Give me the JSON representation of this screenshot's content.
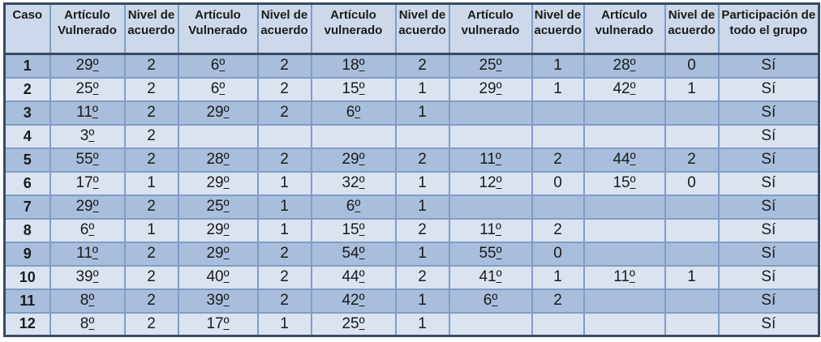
{
  "colors": {
    "outer_border": "#3a4a63",
    "grid_border": "#7f9dc8",
    "header_fill": "#cdd9ea",
    "row_dark_fill": "#a8bedc",
    "row_light_fill": "#dbe3f1",
    "text": "#1b1b1b"
  },
  "table": {
    "columns": [
      "Caso",
      "Artículo Vulnerado",
      "Nivel de acuerdo",
      "Artículo Vulnerado",
      "Nivel de acuerdo",
      "Artículo vulnerado",
      "Nivel de acuerdo",
      "Artículo vulnerado",
      "Nivel de acuerdo",
      "Artículo vulnerado",
      "Nivel de acuerdo",
      "Participación de todo el grupo"
    ],
    "rows": [
      [
        "1",
        "29º",
        "2",
        "6º",
        "2",
        "18º",
        "2",
        "25º",
        "1",
        "28º",
        "0",
        "Sí"
      ],
      [
        "2",
        "25º",
        "2",
        "6º",
        "2",
        "15º",
        "1",
        "29º",
        "1",
        "42º",
        "1",
        "Sí"
      ],
      [
        "3",
        "11º",
        "2",
        "29º",
        "2",
        "6º",
        "1",
        "",
        "",
        "",
        "",
        "Sí"
      ],
      [
        "4",
        "3º",
        "2",
        "",
        "",
        "",
        "",
        "",
        "",
        "",
        "",
        "Sí"
      ],
      [
        "5",
        "55º",
        "2",
        "28º",
        "2",
        "29º",
        "2",
        "11º",
        "2",
        "44º",
        "2",
        "Sí"
      ],
      [
        "6",
        "17º",
        "1",
        "29º",
        "1",
        "32º",
        "1",
        "12º",
        "0",
        "15º",
        "0",
        "Sí"
      ],
      [
        "7",
        "29º",
        "2",
        "25º",
        "1",
        "6º",
        "1",
        "",
        "",
        "",
        "",
        "Sí"
      ],
      [
        "8",
        "6º",
        "1",
        "29º",
        "1",
        "15º",
        "2",
        "11º",
        "2",
        "",
        "",
        "Sí"
      ],
      [
        "9",
        "11º",
        "2",
        "29º",
        "2",
        "54º",
        "1",
        "55º",
        "0",
        "",
        "",
        "Sí"
      ],
      [
        "10",
        "39º",
        "2",
        "40º",
        "2",
        "44º",
        "2",
        "41º",
        "1",
        "11º",
        "1",
        "Sí"
      ],
      [
        "11",
        "8º",
        "2",
        "39º",
        "2",
        "42º",
        "1",
        "6º",
        "2",
        "",
        "",
        "Sí"
      ],
      [
        "12",
        "8º",
        "2",
        "17º",
        "1",
        "25º",
        "1",
        "",
        "",
        "",
        "",
        "Sí"
      ]
    ]
  }
}
